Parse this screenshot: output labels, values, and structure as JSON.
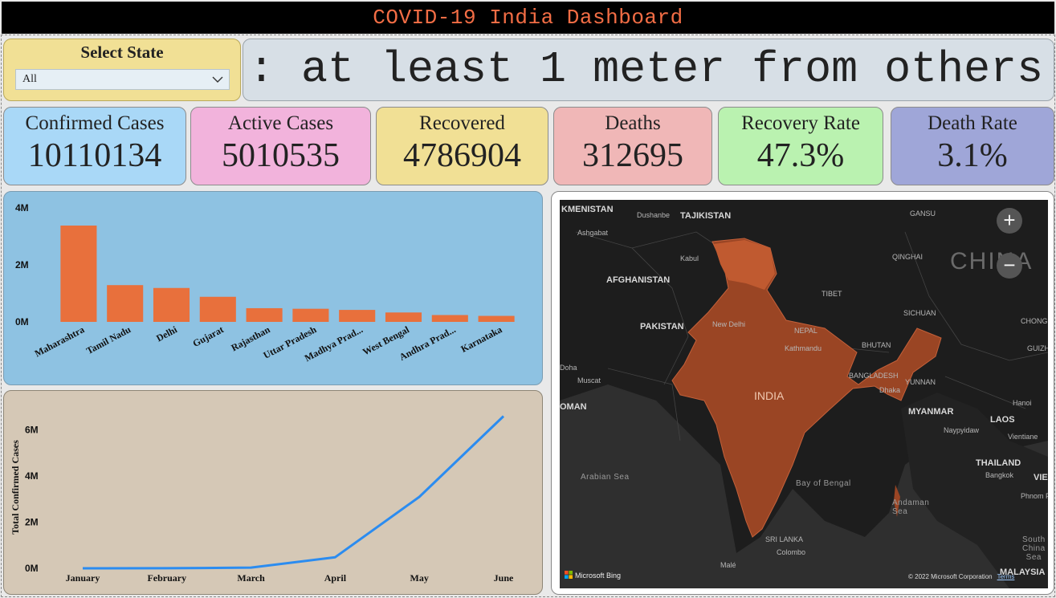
{
  "title": "COVID-19 India Dashboard",
  "slicer": {
    "label": "Select State",
    "selected": "All"
  },
  "ticker_text": ": at least 1 meter from others",
  "kpis": [
    {
      "label": "Confirmed Cases",
      "value": "10110134",
      "color": "#a9d8f7"
    },
    {
      "label": "Active Cases",
      "value": "5010535",
      "color": "#f2b3dc"
    },
    {
      "label": "Recovered",
      "value": "4786904",
      "color": "#f1e095"
    },
    {
      "label": "Deaths",
      "value": "312695",
      "color": "#f0b7b7"
    },
    {
      "label": "Recovery Rate",
      "value": "47.3%",
      "color": "#baf2b0"
    },
    {
      "label": "Death Rate",
      "value": "3.1%",
      "color": "#9fa6d8"
    }
  ],
  "chart_data": [
    {
      "type": "bar",
      "categories": [
        "Maharashtra",
        "Tamil Nadu",
        "Delhi",
        "Gujarat",
        "Rajasthan",
        "Uttar Pradesh",
        "Madhya Prad...",
        "West Bengal",
        "Andhra Prad...",
        "Karnataka"
      ],
      "values": [
        3380000,
        1290000,
        1190000,
        880000,
        480000,
        460000,
        420000,
        330000,
        240000,
        210000
      ],
      "ylim": [
        0,
        4000000
      ],
      "yticks": [
        "0M",
        "2M",
        "4M"
      ],
      "xlabel": "",
      "ylabel": "",
      "color": "#e8703c"
    },
    {
      "type": "line",
      "x": [
        "January",
        "February",
        "March",
        "April",
        "May",
        "June"
      ],
      "values": [
        0,
        3000,
        30000,
        480000,
        3100000,
        6600000
      ],
      "ylim": [
        0,
        7000000
      ],
      "yticks": [
        "0M",
        "2M",
        "4M",
        "6M"
      ],
      "xlabel": "",
      "ylabel": "Total Confirmed Cases",
      "color": "#2b8cf0"
    }
  ],
  "map": {
    "zoom_in": "+",
    "zoom_out": "−",
    "attribution": "Microsoft Bing",
    "copyright": "© 2022 Microsoft Corporation",
    "terms": "Terms",
    "labels": [
      {
        "text": "KMENISTAN",
        "cls": "md"
      },
      {
        "text": "Dushanbe",
        "cls": "sm"
      },
      {
        "text": "TAJIKISTAN",
        "cls": "md"
      },
      {
        "text": "Ashgabat",
        "cls": "sm"
      },
      {
        "text": "Kabul",
        "cls": "sm"
      },
      {
        "text": "AFGHANISTAN",
        "cls": "md"
      },
      {
        "text": "PAKISTAN",
        "cls": "md"
      },
      {
        "text": "New Delhi",
        "cls": "sm"
      },
      {
        "text": "NEPAL",
        "cls": "sm"
      },
      {
        "text": "Kathmandu",
        "cls": "sm"
      },
      {
        "text": "BHUTAN",
        "cls": "sm"
      },
      {
        "text": "BANGLADESH",
        "cls": "sm"
      },
      {
        "text": "Dhaka",
        "cls": "sm"
      },
      {
        "text": "INDIA",
        "cls": "india"
      },
      {
        "text": "CHINA",
        "cls": "lg"
      },
      {
        "text": "TIBET",
        "cls": "sm"
      },
      {
        "text": "QINGHAI",
        "cls": "sm"
      },
      {
        "text": "GANSU",
        "cls": "sm"
      },
      {
        "text": "SICHUAN",
        "cls": "sm"
      },
      {
        "text": "CHONGQING",
        "cls": "sm"
      },
      {
        "text": "GUIZHOU",
        "cls": "sm"
      },
      {
        "text": "YUNNAN",
        "cls": "sm"
      },
      {
        "text": "MYANMAR",
        "cls": "md"
      },
      {
        "text": "Naypyidaw",
        "cls": "sm"
      },
      {
        "text": "LAOS",
        "cls": "md"
      },
      {
        "text": "Vientiane",
        "cls": "sm"
      },
      {
        "text": "Hanoi",
        "cls": "sm"
      },
      {
        "text": "THAILAND",
        "cls": "md"
      },
      {
        "text": "Bangkok",
        "cls": "sm"
      },
      {
        "text": "Phnom P",
        "cls": "sm"
      },
      {
        "text": "VIET",
        "cls": "md"
      },
      {
        "text": "Doha",
        "cls": "sm"
      },
      {
        "text": "Muscat",
        "cls": "sm"
      },
      {
        "text": "OMAN",
        "cls": "md"
      },
      {
        "text": "Arabian Sea",
        "cls": "sea"
      },
      {
        "text": "Bay of Bengal",
        "cls": "sea"
      },
      {
        "text": "Andaman Sea",
        "cls": "sea"
      },
      {
        "text": "SRI LANKA",
        "cls": "sm"
      },
      {
        "text": "Colombo",
        "cls": "sm"
      },
      {
        "text": "Malé",
        "cls": "sm"
      },
      {
        "text": "South China Sea",
        "cls": "sea"
      },
      {
        "text": "MALAYSIA",
        "cls": "md"
      }
    ]
  }
}
